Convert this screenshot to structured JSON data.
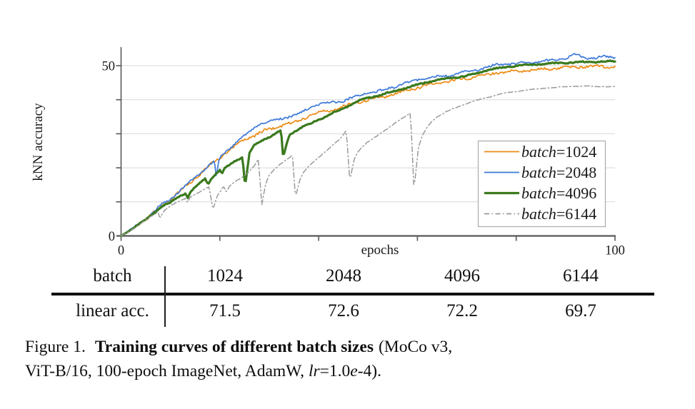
{
  "chart_data": {
    "type": "line",
    "title": "",
    "xlabel": "epochs",
    "ylabel": "kNN accuracy",
    "xlim": [
      0,
      100
    ],
    "ylim": [
      0,
      55.5
    ],
    "grid": "horizontal",
    "legend_position": "lower-right",
    "x_ticks": [
      0,
      20,
      40,
      60,
      80,
      100
    ],
    "y_ticks": [
      0,
      10,
      20,
      30,
      40,
      50
    ],
    "x_tick_labels": [
      {
        "value": 0,
        "label": "0"
      },
      {
        "value": 100,
        "label": "100"
      }
    ],
    "y_tick_labels": [
      {
        "value": 0,
        "label": "0"
      },
      {
        "value": 50,
        "label": "50"
      }
    ],
    "colors": {
      "grid": "#d8d8d8",
      "axis": "#58585a",
      "text": "#1a1a1a",
      "legend_border": "#b0b0b0"
    },
    "series": [
      {
        "name": "batch=1024",
        "color": "#ED8A12",
        "style": "solid",
        "width": 1.7,
        "noise": 0.5,
        "points": [
          [
            0,
            0
          ],
          [
            2,
            1.8
          ],
          [
            4,
            3.8
          ],
          [
            5,
            4.8
          ],
          [
            6,
            6
          ],
          [
            7,
            7.2
          ],
          [
            8,
            8.6
          ],
          [
            10,
            10.6
          ],
          [
            12,
            13.2
          ],
          [
            14,
            15.6
          ],
          [
            16,
            18.2
          ],
          [
            18,
            20.8
          ],
          [
            20,
            23
          ],
          [
            22,
            25.3
          ],
          [
            24,
            27.3
          ],
          [
            25,
            28.3
          ],
          [
            27,
            29.6
          ],
          [
            29,
            30.8
          ],
          [
            31,
            31.8
          ],
          [
            33,
            32.7
          ],
          [
            35,
            33.2
          ],
          [
            37,
            34.6
          ],
          [
            39,
            35.8
          ],
          [
            41,
            36.5
          ],
          [
            43,
            37.1
          ],
          [
            45,
            37.9
          ],
          [
            47,
            38.8
          ],
          [
            49,
            39.7
          ],
          [
            52,
            40.4
          ],
          [
            54,
            41.2
          ],
          [
            56,
            42
          ],
          [
            58,
            42.8
          ],
          [
            60,
            43.6
          ],
          [
            62,
            44.3
          ],
          [
            64,
            44.9
          ],
          [
            66,
            45.4
          ],
          [
            68,
            45.8
          ],
          [
            70,
            46.2
          ],
          [
            72,
            46.8
          ],
          [
            74,
            47.3
          ],
          [
            76,
            47.9
          ],
          [
            78,
            48.2
          ],
          [
            80,
            48.4
          ],
          [
            83,
            48.7
          ],
          [
            86,
            49
          ],
          [
            89,
            49.3
          ],
          [
            92,
            49.6
          ],
          [
            95,
            49.8
          ],
          [
            98,
            49.8
          ],
          [
            100,
            49.8
          ]
        ]
      },
      {
        "name": "batch=2048",
        "color": "#3D79D8",
        "style": "solid",
        "width": 1.7,
        "noise": 0.45,
        "points": [
          [
            0,
            0
          ],
          [
            2,
            2
          ],
          [
            4,
            4
          ],
          [
            5,
            5
          ],
          [
            6,
            6.3
          ],
          [
            7,
            7.6
          ],
          [
            8,
            9
          ],
          [
            10,
            10.8
          ],
          [
            12,
            13.4
          ],
          [
            14,
            16
          ],
          [
            16,
            18.4
          ],
          [
            18,
            21
          ],
          [
            18.9,
            22.1
          ],
          [
            19.3,
            16.7
          ],
          [
            19.8,
            22.4
          ],
          [
            21,
            24.3
          ],
          [
            22,
            25.8
          ],
          [
            24,
            28.2
          ],
          [
            25,
            29.3
          ],
          [
            26,
            30.6
          ],
          [
            27,
            32
          ],
          [
            28,
            32.8
          ],
          [
            30,
            33.6
          ],
          [
            32,
            34.3
          ],
          [
            34,
            35
          ],
          [
            36,
            35.6
          ],
          [
            37,
            36.6
          ],
          [
            38,
            37.5
          ],
          [
            39,
            38.2
          ],
          [
            40,
            38.6
          ],
          [
            42,
            39
          ],
          [
            44,
            39.4
          ],
          [
            45,
            39.7
          ],
          [
            47,
            40.7
          ],
          [
            49,
            41.7
          ],
          [
            50,
            42
          ],
          [
            52,
            42.4
          ],
          [
            54,
            43.2
          ],
          [
            56,
            44.2
          ],
          [
            58,
            45
          ],
          [
            60,
            45.8
          ],
          [
            62,
            46.3
          ],
          [
            64,
            46.7
          ],
          [
            66,
            47.1
          ],
          [
            68,
            47.6
          ],
          [
            70,
            48.2
          ],
          [
            72,
            48.8
          ],
          [
            74,
            49.4
          ],
          [
            76,
            50.2
          ],
          [
            78,
            50.4
          ],
          [
            80,
            50.6
          ],
          [
            82,
            50.8
          ],
          [
            84,
            51
          ],
          [
            86,
            51.3
          ],
          [
            88,
            51.8
          ],
          [
            90,
            52.2
          ],
          [
            92,
            53.2
          ],
          [
            94,
            52.4
          ],
          [
            96,
            52.2
          ],
          [
            98,
            52.6
          ],
          [
            100,
            52.6
          ]
        ]
      },
      {
        "name": "batch=4096",
        "color": "#3B7A1E",
        "style": "solid",
        "width": 3.2,
        "noise": 0.22,
        "points": [
          [
            0,
            0
          ],
          [
            2,
            1.8
          ],
          [
            4,
            3.8
          ],
          [
            5,
            4.8
          ],
          [
            6,
            6
          ],
          [
            7,
            7.2
          ],
          [
            8,
            8.4
          ],
          [
            9,
            9.2
          ],
          [
            10,
            9.8
          ],
          [
            11,
            10.8
          ],
          [
            12,
            11.8
          ],
          [
            13,
            12.6
          ],
          [
            13.5,
            11.2
          ],
          [
            14,
            12.8
          ],
          [
            15,
            14.2
          ],
          [
            16,
            15.6
          ],
          [
            17,
            16.8
          ],
          [
            17.6,
            15.2
          ],
          [
            18.2,
            16.8
          ],
          [
            19,
            18
          ],
          [
            20,
            19.2
          ],
          [
            20.5,
            18.3
          ],
          [
            21,
            19.8
          ],
          [
            22,
            21
          ],
          [
            23,
            22
          ],
          [
            24,
            22.6
          ],
          [
            24.6,
            23.2
          ],
          [
            25.1,
            14.5
          ],
          [
            26,
            24.4
          ],
          [
            27,
            26.6
          ],
          [
            28,
            27.6
          ],
          [
            29,
            28.4
          ],
          [
            30,
            29
          ],
          [
            31,
            29.8
          ],
          [
            32,
            30.6
          ],
          [
            32.4,
            31.2
          ],
          [
            32.8,
            23
          ],
          [
            33.6,
            27.5
          ],
          [
            34.2,
            30
          ],
          [
            35,
            30.6
          ],
          [
            36,
            31.4
          ],
          [
            37,
            32.2
          ],
          [
            38,
            32.8
          ],
          [
            39,
            33.4
          ],
          [
            40,
            34.2
          ],
          [
            41,
            34.8
          ],
          [
            42,
            35.4
          ],
          [
            43,
            36.2
          ],
          [
            44,
            36.8
          ],
          [
            45,
            37.5
          ],
          [
            46,
            38.2
          ],
          [
            47,
            38.9
          ],
          [
            48,
            39.6
          ],
          [
            49,
            40.2
          ],
          [
            50,
            40.6
          ],
          [
            52,
            41.2
          ],
          [
            54,
            42
          ],
          [
            56,
            42.8
          ],
          [
            58,
            43.6
          ],
          [
            60,
            44.4
          ],
          [
            62,
            45.2
          ],
          [
            64,
            45.8
          ],
          [
            66,
            46.2
          ],
          [
            68,
            46.6
          ],
          [
            70,
            47
          ],
          [
            72,
            47.8
          ],
          [
            74,
            48.6
          ],
          [
            76,
            49.2
          ],
          [
            78,
            49.6
          ],
          [
            80,
            50
          ],
          [
            82,
            50.2
          ],
          [
            84,
            50.35
          ],
          [
            86,
            50.5
          ],
          [
            88,
            50.7
          ],
          [
            90,
            50.85
          ],
          [
            92,
            51
          ],
          [
            95,
            51.1
          ],
          [
            98,
            51.2
          ],
          [
            100,
            51.3
          ]
        ]
      },
      {
        "name": "batch=6144",
        "color": "#9A9A9A",
        "style": "dashdot",
        "width": 1.5,
        "noise": 0.12,
        "points": [
          [
            0,
            0
          ],
          [
            2,
            1.6
          ],
          [
            4,
            3.6
          ],
          [
            5,
            4.6
          ],
          [
            6,
            5.6
          ],
          [
            7,
            6.6
          ],
          [
            7.5,
            6.8
          ],
          [
            7.9,
            5.2
          ],
          [
            8.5,
            7
          ],
          [
            9,
            7.8
          ],
          [
            10,
            8.8
          ],
          [
            11,
            9.6
          ],
          [
            12,
            10.4
          ],
          [
            13,
            11
          ],
          [
            13.5,
            10
          ],
          [
            14,
            11.4
          ],
          [
            15,
            12.2
          ],
          [
            16,
            13
          ],
          [
            17,
            13.8
          ],
          [
            17.8,
            14.4
          ],
          [
            18.6,
            7.8
          ],
          [
            19.5,
            11.8
          ],
          [
            20,
            13
          ],
          [
            20.8,
            14.6
          ],
          [
            21.3,
            12.8
          ],
          [
            22,
            14.6
          ],
          [
            23,
            15.8
          ],
          [
            24,
            16.8
          ],
          [
            25,
            17.8
          ],
          [
            26,
            19
          ],
          [
            27,
            20.6
          ],
          [
            27.8,
            22.6
          ],
          [
            28.5,
            9.2
          ],
          [
            29.3,
            15.5
          ],
          [
            30,
            17.8
          ],
          [
            31,
            19.6
          ],
          [
            32,
            20.8
          ],
          [
            33,
            21.8
          ],
          [
            34,
            22.8
          ],
          [
            34.7,
            23.8
          ],
          [
            35.3,
            11.3
          ],
          [
            36.2,
            16.5
          ],
          [
            37,
            18.8
          ],
          [
            38,
            20.4
          ],
          [
            39,
            21.8
          ],
          [
            40,
            23
          ],
          [
            41,
            24.4
          ],
          [
            42,
            25.6
          ],
          [
            43,
            26.8
          ],
          [
            44,
            28
          ],
          [
            45,
            29.6
          ],
          [
            45.6,
            31
          ],
          [
            46.3,
            16.3
          ],
          [
            47.2,
            22.5
          ],
          [
            48,
            24.8
          ],
          [
            49,
            26.4
          ],
          [
            50,
            27.6
          ],
          [
            51,
            28.6
          ],
          [
            52,
            29.6
          ],
          [
            53,
            30.6
          ],
          [
            54,
            31.6
          ],
          [
            55,
            32.6
          ],
          [
            56,
            33.6
          ],
          [
            57,
            34.6
          ],
          [
            58,
            35.6
          ],
          [
            58.6,
            36.2
          ],
          [
            59.3,
            13.5
          ],
          [
            60.2,
            26
          ],
          [
            61,
            29.5
          ],
          [
            62,
            32
          ],
          [
            63,
            33.8
          ],
          [
            64,
            35
          ],
          [
            65,
            35.8
          ],
          [
            66,
            36.6
          ],
          [
            67,
            37.2
          ],
          [
            68,
            37.8
          ],
          [
            69,
            38.4
          ],
          [
            70,
            38.9
          ],
          [
            71,
            39.4
          ],
          [
            72,
            39.8
          ],
          [
            73,
            40.2
          ],
          [
            74,
            40.6
          ],
          [
            75,
            41
          ],
          [
            76,
            41.4
          ],
          [
            77,
            41.7
          ],
          [
            78,
            42
          ],
          [
            80,
            42.4
          ],
          [
            82,
            42.8
          ],
          [
            84,
            43.1
          ],
          [
            86,
            43.4
          ],
          [
            88,
            43.6
          ],
          [
            90,
            43.8
          ],
          [
            92,
            44
          ],
          [
            95,
            44
          ],
          [
            97,
            43.8
          ],
          [
            98,
            43.9
          ],
          [
            100,
            43.8
          ]
        ]
      }
    ]
  },
  "table": {
    "header_label": "batch",
    "row_label": "linear acc.",
    "columns": [
      "1024",
      "2048",
      "4096",
      "6144"
    ],
    "values": [
      "71.5",
      "72.6",
      "72.2",
      "69.7"
    ]
  },
  "caption": {
    "label": "Figure 1.",
    "bold": "Training curves of different batch sizes",
    "line1_rest": "(MoCo v3,",
    "line2_pre": "ViT-B/16, 100-epoch ImageNet, AdamW,",
    "lr": "lr",
    "eq": "=1.0",
    "e": "e",
    "tail": "-4)."
  }
}
